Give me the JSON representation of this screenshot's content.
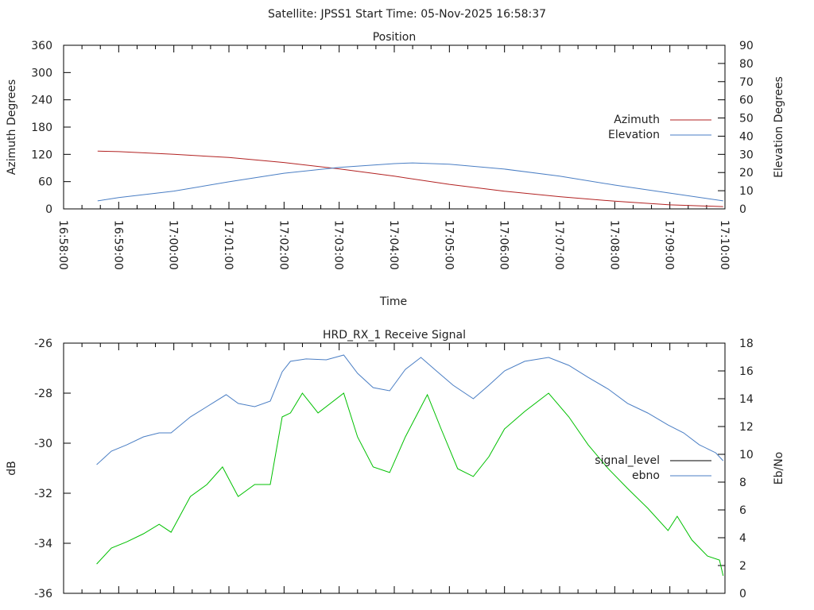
{
  "title": "Satellite: JPSS1    Start Time: 05-Nov-2025 16:58:37",
  "colors": {
    "azimuth": "#b22222",
    "elevation": "#4a7ec4",
    "signal_level": "#00c000",
    "signal_legend": "#000000",
    "ebno": "#4a7ec4"
  },
  "chart_data": [
    {
      "type": "line",
      "title": "Position",
      "xlabel": "Time",
      "ylabel": "Azimuth Degrees",
      "y2label": "Elevation Degrees",
      "xlim_seconds_from": "16:58:00",
      "xlim": [
        0,
        720
      ],
      "ylim": [
        0,
        360
      ],
      "y2lim": [
        0,
        90
      ],
      "yticks": [
        0,
        60,
        120,
        180,
        240,
        300,
        360
      ],
      "y2ticks": [
        0,
        10,
        20,
        30,
        40,
        50,
        60,
        70,
        80,
        90
      ],
      "xtick_labels": [
        "16:58:00",
        "16:59:00",
        "17:00:00",
        "17:01:00",
        "17:02:00",
        "17:03:00",
        "17:04:00",
        "17:05:00",
        "17:06:00",
        "17:07:00",
        "17:08:00",
        "17:09:00",
        "17:10:00"
      ],
      "legend_position": "right",
      "series": [
        {
          "name": "Azimuth",
          "axis": "y",
          "x": [
            37,
            60,
            120,
            180,
            240,
            300,
            360,
            420,
            480,
            540,
            600,
            660,
            718
          ],
          "values": [
            127,
            126,
            120,
            113,
            102,
            88,
            72,
            54,
            39,
            27,
            17,
            9,
            5
          ]
        },
        {
          "name": "Elevation",
          "axis": "y2",
          "x": [
            37,
            60,
            120,
            180,
            240,
            300,
            360,
            380,
            420,
            480,
            540,
            600,
            660,
            718
          ],
          "values": [
            4.4,
            6.2,
            9.8,
            14.9,
            19.6,
            22.8,
            24.9,
            25.3,
            24.6,
            21.9,
            18.0,
            13.1,
            8.7,
            4.4
          ]
        }
      ]
    },
    {
      "type": "line",
      "title": "HRD_RX_1 Receive Signal",
      "xlabel": "",
      "ylabel": "dB",
      "y2label": "Eb/No",
      "xlim": [
        0,
        720
      ],
      "ylim": [
        -36,
        -26
      ],
      "y2lim": [
        0,
        18
      ],
      "yticks": [
        -36,
        -34,
        -32,
        -30,
        -28,
        -26
      ],
      "y2ticks": [
        0,
        2,
        4,
        6,
        8,
        10,
        12,
        14,
        16,
        18
      ],
      "legend_position": "right",
      "series": [
        {
          "name": "signal_level",
          "axis": "y",
          "x": [
            36,
            52,
            69,
            87,
            104,
            117,
            138,
            156,
            173,
            190,
            208,
            225,
            238,
            247,
            260,
            277,
            305,
            320,
            337,
            355,
            372,
            396,
            411,
            429,
            446,
            463,
            480,
            502,
            528,
            550,
            571,
            593,
            614,
            636,
            658,
            668,
            684,
            701,
            714,
            718
          ],
          "values": [
            -34.83,
            -34.19,
            -33.94,
            -33.62,
            -33.24,
            -33.56,
            -32.13,
            -31.65,
            -30.95,
            -32.13,
            -31.65,
            -31.65,
            -28.95,
            -28.79,
            -28.0,
            -28.79,
            -28.0,
            -29.75,
            -30.95,
            -31.17,
            -29.75,
            -28.06,
            -29.43,
            -31.02,
            -31.33,
            -30.54,
            -29.43,
            -28.73,
            -28.0,
            -28.95,
            -30.06,
            -31.02,
            -31.81,
            -32.6,
            -33.49,
            -32.92,
            -33.87,
            -34.51,
            -34.67,
            -35.3
          ]
        },
        {
          "name": "ebno",
          "axis": "y2",
          "x": [
            36,
            52,
            69,
            87,
            104,
            117,
            138,
            156,
            177,
            190,
            208,
            225,
            238,
            247,
            264,
            286,
            305,
            320,
            337,
            355,
            372,
            389,
            407,
            424,
            446,
            463,
            480,
            502,
            528,
            550,
            571,
            593,
            614,
            636,
            658,
            675,
            692,
            710,
            718
          ],
          "values": [
            9.26,
            10.23,
            10.69,
            11.26,
            11.54,
            11.54,
            12.69,
            13.43,
            14.29,
            13.66,
            13.43,
            13.83,
            15.94,
            16.69,
            16.86,
            16.8,
            17.14,
            15.83,
            14.8,
            14.57,
            16.11,
            16.97,
            15.94,
            14.97,
            14.0,
            14.97,
            16.0,
            16.69,
            16.97,
            16.4,
            15.54,
            14.69,
            13.66,
            12.97,
            12.11,
            11.54,
            10.69,
            10.11,
            9.54
          ]
        }
      ]
    }
  ]
}
